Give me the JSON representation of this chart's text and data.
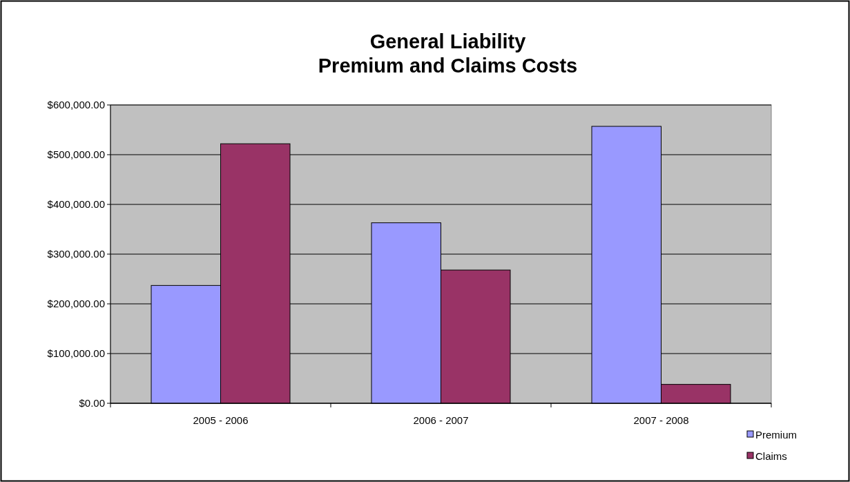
{
  "chart_data": {
    "type": "bar",
    "title": "General Liability\nPremium and Claims Costs",
    "categories": [
      "2005 - 2006",
      "2006 - 2007",
      "2007 - 2008"
    ],
    "series": [
      {
        "name": "Premium",
        "color": "#9999ff",
        "values": [
          237000,
          363000,
          557000
        ]
      },
      {
        "name": "Claims",
        "color": "#993366",
        "values": [
          522000,
          268000,
          38000
        ]
      }
    ],
    "ylim": [
      0,
      600000
    ],
    "yticks": [
      {
        "value": 0,
        "label": "$0.00"
      },
      {
        "value": 100000,
        "label": "$100,000.00"
      },
      {
        "value": 200000,
        "label": "$200,000.00"
      },
      {
        "value": 300000,
        "label": "$300,000.00"
      },
      {
        "value": 400000,
        "label": "$400,000.00"
      },
      {
        "value": 500000,
        "label": "$500,000.00"
      },
      {
        "value": 600000,
        "label": "$600,000.00"
      }
    ],
    "grid": "y",
    "legend": "bottom right"
  }
}
